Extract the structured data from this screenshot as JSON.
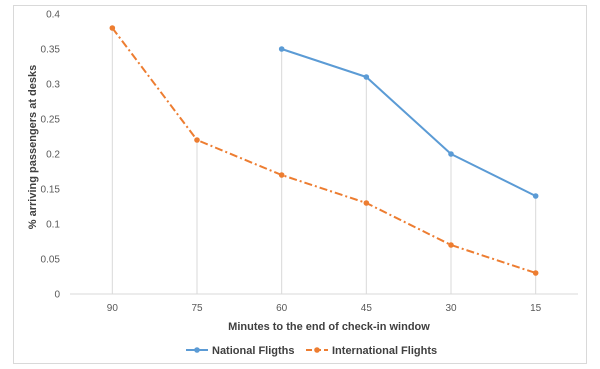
{
  "chart_data": {
    "type": "line",
    "title": "",
    "xlabel": "Minutes to the end of check-in window",
    "ylabel": "% arriving passengers at desks",
    "categories": [
      "90",
      "75",
      "60",
      "45",
      "30",
      "15"
    ],
    "ylim": [
      0,
      0.4
    ],
    "yticks": [
      "0",
      "0.05",
      "0.1",
      "0.15",
      "0.2",
      "0.25",
      "0.3",
      "0.35",
      "0.4"
    ],
    "grid": false,
    "drop_lines": true,
    "legend_position": "bottom",
    "series": [
      {
        "name": "National Fligths",
        "values": [
          null,
          null,
          0.35,
          0.31,
          0.2,
          0.14
        ],
        "color": "#5b9bd5",
        "line_style": "solid",
        "marker": "circle"
      },
      {
        "name": "International Flights",
        "values": [
          0.38,
          0.22,
          0.17,
          0.13,
          0.07,
          0.03
        ],
        "color": "#ed7d31",
        "line_style": "dash-dot",
        "marker": "circle"
      }
    ]
  }
}
